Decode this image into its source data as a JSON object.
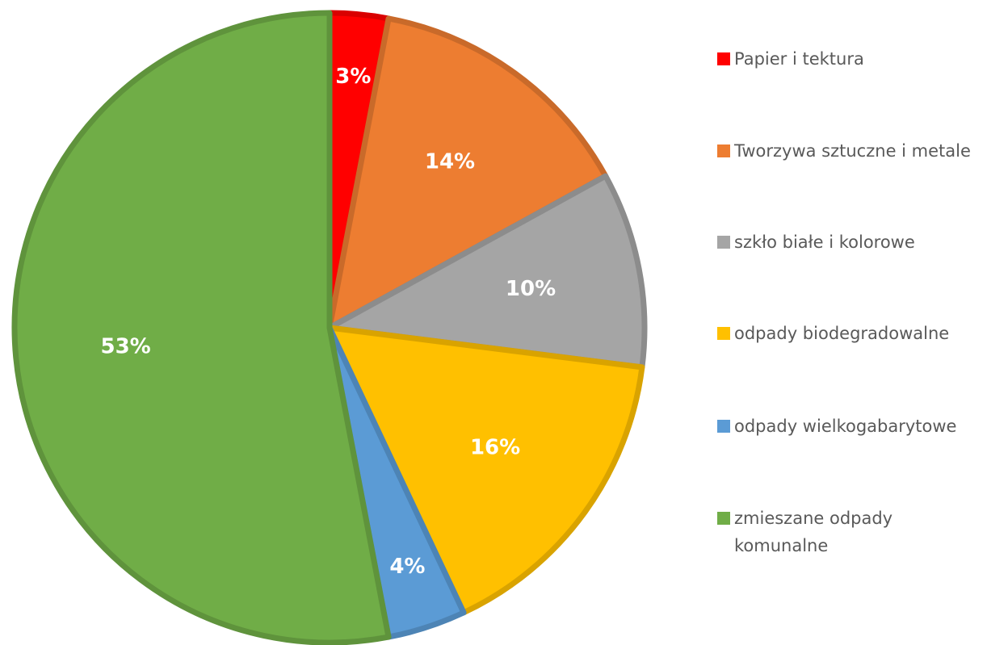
{
  "chart_data": {
    "type": "pie",
    "categories": [
      "Papier i tektura",
      "Tworzywa sztuczne i metale",
      "szkło białe i kolorowe",
      "odpady biodegradowalne",
      "odpady wielkogabarytowe",
      "zmieszane odpady komunalne"
    ],
    "values": [
      3,
      14,
      10,
      16,
      4,
      53
    ],
    "value_labels": [
      "3%",
      "14%",
      "10%",
      "16%",
      "4%",
      "53%"
    ],
    "colors": [
      "#ff0000",
      "#ed7d31",
      "#a5a5a5",
      "#ffc000",
      "#5b9bd5",
      "#70ad47"
    ],
    "legend": "right"
  }
}
